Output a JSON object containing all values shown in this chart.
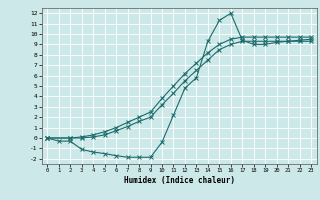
{
  "xlabel": "Humidex (Indice chaleur)",
  "bg_color": "#cce8e8",
  "grid_color": "#ffffff",
  "line_color": "#1a6b6b",
  "xlim": [
    -0.5,
    23.5
  ],
  "ylim": [
    -2.5,
    12.5
  ],
  "xticks": [
    0,
    1,
    2,
    3,
    4,
    5,
    6,
    7,
    8,
    9,
    10,
    11,
    12,
    13,
    14,
    15,
    16,
    17,
    18,
    19,
    20,
    21,
    22,
    23
  ],
  "yticks": [
    -2,
    -1,
    0,
    1,
    2,
    3,
    4,
    5,
    6,
    7,
    8,
    9,
    10,
    11,
    12
  ],
  "curve1_x": [
    0,
    1,
    2,
    3,
    4,
    5,
    6,
    7,
    8,
    9,
    10,
    11,
    12,
    13,
    14,
    15,
    16,
    17,
    18,
    19,
    20,
    21,
    22,
    23
  ],
  "curve1_y": [
    0,
    -0.3,
    -0.3,
    -1.1,
    -1.35,
    -1.5,
    -1.7,
    -1.85,
    -1.85,
    -1.85,
    -0.4,
    2.2,
    4.8,
    5.8,
    9.3,
    11.3,
    12.0,
    9.4,
    9.0,
    9.0,
    9.2,
    9.3,
    9.4,
    9.5
  ],
  "curve2_x": [
    0,
    2,
    3,
    4,
    5,
    6,
    7,
    8,
    9,
    10,
    11,
    12,
    13,
    14,
    15,
    16,
    17,
    18,
    19,
    20,
    21,
    22,
    23
  ],
  "curve2_y": [
    0,
    0.0,
    0.1,
    0.3,
    0.6,
    1.0,
    1.5,
    2.0,
    2.5,
    3.8,
    5.0,
    6.2,
    7.2,
    8.2,
    9.0,
    9.5,
    9.7,
    9.7,
    9.7,
    9.7,
    9.7,
    9.7,
    9.7
  ],
  "curve3_x": [
    0,
    2,
    3,
    4,
    5,
    6,
    7,
    8,
    9,
    10,
    11,
    12,
    13,
    14,
    15,
    16,
    17,
    18,
    19,
    20,
    21,
    22,
    23
  ],
  "curve3_y": [
    0,
    0.0,
    0.0,
    0.1,
    0.3,
    0.7,
    1.1,
    1.6,
    2.0,
    3.2,
    4.3,
    5.5,
    6.5,
    7.5,
    8.5,
    9.0,
    9.3,
    9.3,
    9.3,
    9.3,
    9.3,
    9.3,
    9.3
  ]
}
